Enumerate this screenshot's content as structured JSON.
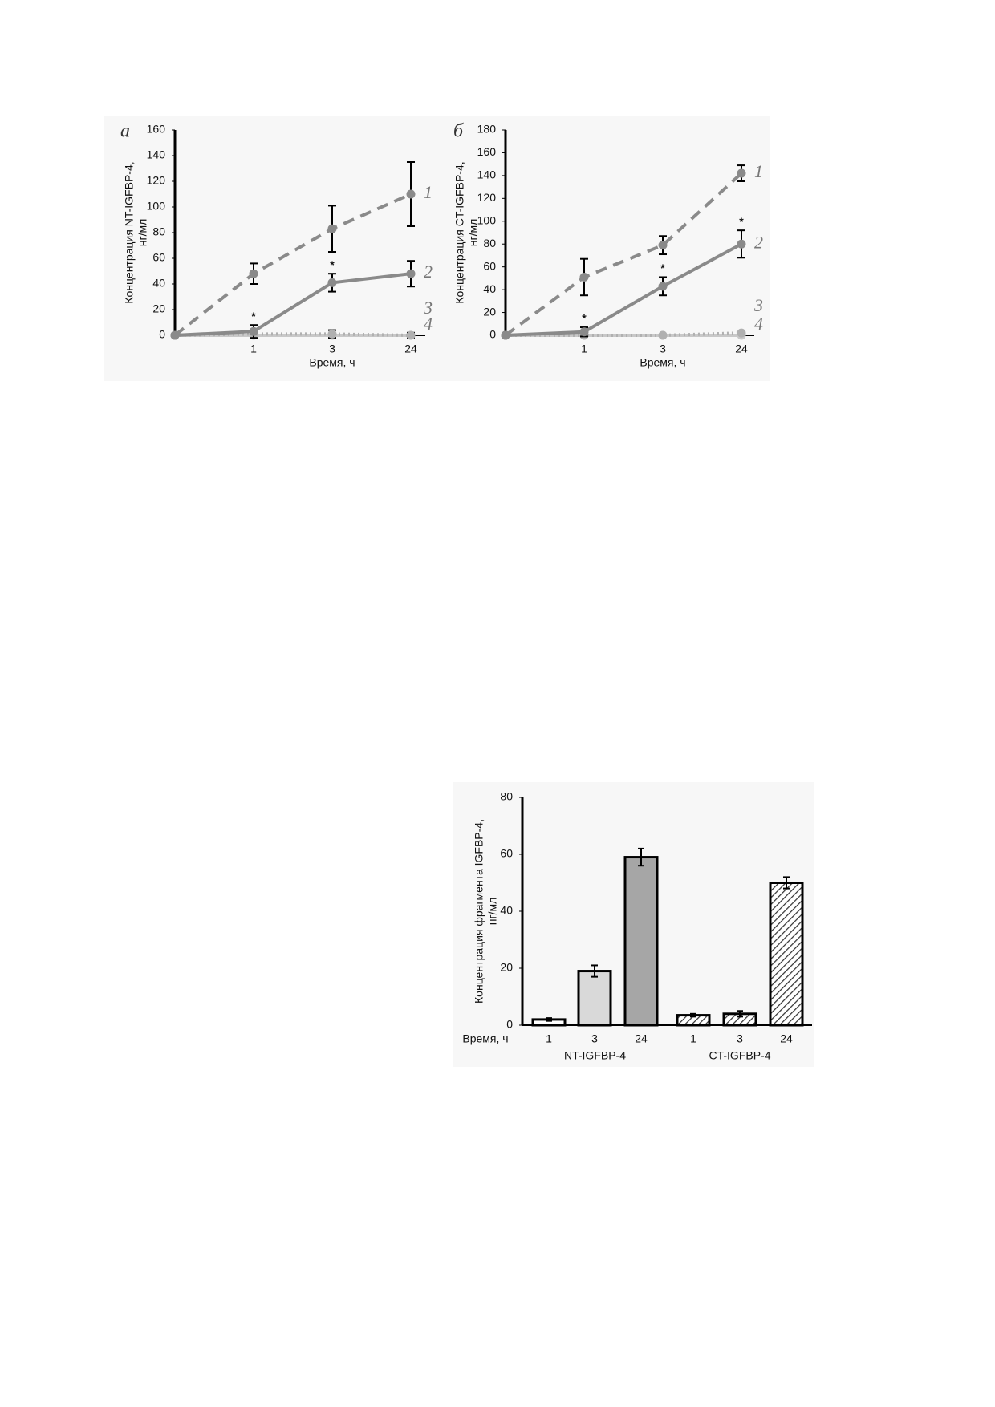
{
  "chart_data": [
    {
      "type": "line",
      "panel": "а",
      "ylabel": [
        "Концентрация NT-IGFBP-4,",
        "нг/мл"
      ],
      "xlabel": "Время, ч",
      "categories": [
        null,
        "1",
        "3",
        "24"
      ],
      "ylim": [
        0,
        160
      ],
      "yticks": [
        0,
        20,
        40,
        60,
        80,
        100,
        120,
        140,
        160
      ],
      "series": [
        {
          "name": "1",
          "color": "#8a8a8a",
          "dash": "dashed",
          "values": [
            0,
            48,
            83,
            110
          ],
          "errors": [
            0,
            8,
            18,
            25
          ]
        },
        {
          "name": "2",
          "color": "#8a8a8a",
          "dash": "solid",
          "values": [
            0,
            3,
            41,
            48
          ],
          "errors": [
            0,
            5,
            7,
            10
          ],
          "significance": [
            null,
            "*",
            "*",
            null
          ]
        },
        {
          "name": "3",
          "color": "#b0b0b0",
          "dash": "dotted",
          "values": [
            0,
            1,
            1,
            0
          ],
          "errors": [
            0,
            0,
            3,
            2
          ]
        },
        {
          "name": "4",
          "color": "#c8c8c8",
          "dash": "solid",
          "values": [
            0,
            0,
            0,
            0
          ],
          "errors": [
            0,
            0,
            0,
            0
          ]
        }
      ]
    },
    {
      "type": "line",
      "panel": "б",
      "ylabel": [
        "Концентрация CT-IGFBP-4,",
        "нг/мл"
      ],
      "xlabel": "Время, ч",
      "categories": [
        null,
        "1",
        "3",
        "24"
      ],
      "ylim": [
        0,
        180
      ],
      "yticks": [
        0,
        20,
        40,
        60,
        80,
        100,
        120,
        140,
        160,
        180
      ],
      "series": [
        {
          "name": "1",
          "color": "#8a8a8a",
          "dash": "dashed",
          "values": [
            0,
            51,
            79,
            142
          ],
          "errors": [
            0,
            16,
            8,
            7
          ]
        },
        {
          "name": "2",
          "color": "#8a8a8a",
          "dash": "solid",
          "values": [
            0,
            3,
            43,
            80
          ],
          "errors": [
            0,
            4,
            8,
            12
          ],
          "significance": [
            null,
            "*",
            "*",
            "*"
          ]
        },
        {
          "name": "3",
          "color": "#b0b0b0",
          "dash": "dotted",
          "values": [
            0,
            0,
            0,
            2
          ],
          "errors": [
            0,
            0,
            0,
            1
          ]
        },
        {
          "name": "4",
          "color": "#c8c8c8",
          "dash": "solid",
          "values": [
            0,
            0,
            0,
            0
          ],
          "errors": [
            0,
            0,
            0,
            0
          ]
        }
      ]
    },
    {
      "type": "grouped_bar",
      "ylabel": [
        "Концентрация фрагмента IGFBP-4,",
        "нг/мл"
      ],
      "xlabel": "Время, ч",
      "ylim": [
        0,
        80
      ],
      "yticks": [
        0,
        20,
        40,
        60,
        80
      ],
      "groups": [
        {
          "name": "NT-IGFBP-4",
          "categories": [
            "1",
            "3",
            "24"
          ],
          "values": [
            2,
            19,
            59
          ],
          "errors": [
            0.5,
            2,
            3
          ],
          "fills": [
            "#ffffff",
            "#d9d9d9",
            "#a6a6a6"
          ]
        },
        {
          "name": "CT-IGFBP-4",
          "categories": [
            "1",
            "3",
            "24"
          ],
          "values": [
            3.5,
            4,
            50
          ],
          "errors": [
            0.5,
            1,
            2
          ],
          "fills": [
            "hatch",
            "hatch",
            "hatch"
          ]
        }
      ]
    }
  ]
}
